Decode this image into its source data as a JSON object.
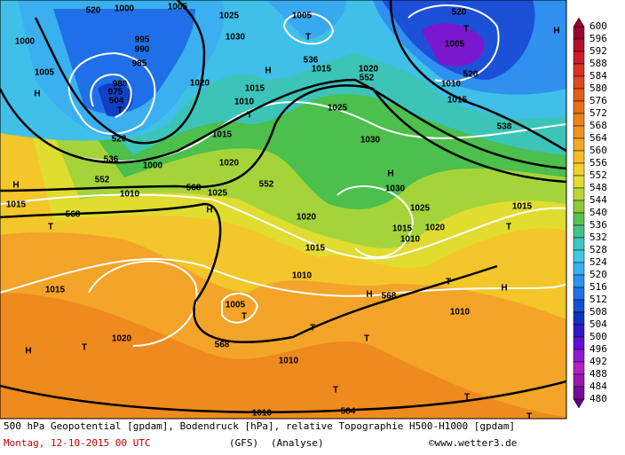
{
  "map_labels": [
    "520",
    "1000",
    "1005",
    "1025",
    "1030",
    "1005",
    "T",
    "536",
    "1015",
    "1020",
    "552",
    "520",
    "T",
    "1005",
    "520",
    "1010",
    "1015",
    "538",
    "H",
    "1000",
    "995",
    "990",
    "985",
    "1005",
    "H",
    "980",
    "975",
    "504",
    "T",
    "520",
    "536",
    "1000",
    "552",
    "H",
    "1010",
    "568",
    "1025",
    "552",
    "H",
    "1015",
    "1010",
    "T",
    "1020",
    "1015",
    "1020",
    "1025",
    "1030",
    "H",
    "1030",
    "1025",
    "1020",
    "1015",
    "1010",
    "1020",
    "1015",
    "T",
    "1015",
    "568",
    "T",
    "H",
    "1015",
    "1010",
    "1015",
    "568",
    "H",
    "T",
    "H",
    "1010",
    "1005",
    "T",
    "T",
    "T",
    "568",
    "1020",
    "H",
    "T",
    "1010",
    "T",
    "T",
    "584",
    "1010",
    "T"
  ],
  "colorbar": [
    600,
    596,
    592,
    588,
    584,
    580,
    576,
    572,
    568,
    564,
    560,
    556,
    552,
    548,
    544,
    540,
    536,
    532,
    528,
    524,
    520,
    516,
    512,
    508,
    504,
    500,
    496,
    492,
    488,
    484,
    480
  ],
  "footer": {
    "description": "500 hPa Geopotential [gpdam], Bodendruck [hPa], relative Topographie H500-H1000 [gpdam]",
    "date": "Montag, 12-10-2015  00 UTC",
    "model": "(GFS)",
    "run": "(Analyse)",
    "copyright": "©www.wetter3.de"
  }
}
